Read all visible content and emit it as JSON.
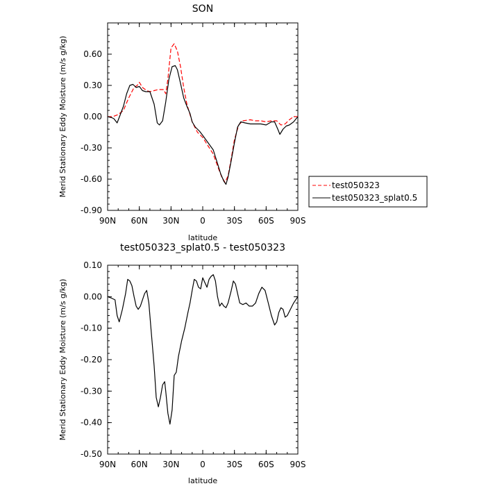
{
  "chart_data": [
    {
      "type": "line",
      "title": "SON",
      "xlabel": "latitude",
      "ylabel": "Merid Stationary Eddy Moisture (m/s g/kg)",
      "xlim": [
        90,
        -90
      ],
      "ylim": [
        -0.9,
        0.9
      ],
      "x_ticks": [
        {
          "value": 90,
          "label": "90N"
        },
        {
          "value": 60,
          "label": "60N"
        },
        {
          "value": 30,
          "label": "30N"
        },
        {
          "value": 0,
          "label": "0"
        },
        {
          "value": -30,
          "label": "30S"
        },
        {
          "value": -60,
          "label": "60S"
        },
        {
          "value": -90,
          "label": "90S"
        }
      ],
      "y_ticks": [
        {
          "value": 0.6,
          "label": "0.60"
        },
        {
          "value": 0.3,
          "label": "0.30"
        },
        {
          "value": 0.0,
          "label": "0.00"
        },
        {
          "value": -0.3,
          "label": "-0.30"
        },
        {
          "value": -0.6,
          "label": "-0.60"
        },
        {
          "value": -0.9,
          "label": "-0.90"
        }
      ],
      "legend_position": "right-outside",
      "series": [
        {
          "name": "test050323",
          "color": "#ff0000",
          "dash": "dashed",
          "points": [
            [
              90,
              0.0
            ],
            [
              85,
              0.0
            ],
            [
              80,
              0.02
            ],
            [
              75,
              0.06
            ],
            [
              70,
              0.18
            ],
            [
              65,
              0.28
            ],
            [
              62,
              0.3
            ],
            [
              60,
              0.33
            ],
            [
              57,
              0.28
            ],
            [
              53,
              0.25
            ],
            [
              50,
              0.24
            ],
            [
              46,
              0.25
            ],
            [
              42,
              0.26
            ],
            [
              37,
              0.26
            ],
            [
              35,
              0.22
            ],
            [
              33,
              0.36
            ],
            [
              30,
              0.66
            ],
            [
              27,
              0.7
            ],
            [
              24,
              0.63
            ],
            [
              21,
              0.48
            ],
            [
              18,
              0.28
            ],
            [
              15,
              0.12
            ],
            [
              10,
              -0.05
            ],
            [
              5,
              -0.15
            ],
            [
              0,
              -0.2
            ],
            [
              -5,
              -0.28
            ],
            [
              -10,
              -0.36
            ],
            [
              -15,
              -0.5
            ],
            [
              -18,
              -0.58
            ],
            [
              -21,
              -0.63
            ],
            [
              -24,
              -0.57
            ],
            [
              -27,
              -0.4
            ],
            [
              -30,
              -0.22
            ],
            [
              -34,
              -0.08
            ],
            [
              -38,
              -0.04
            ],
            [
              -45,
              -0.03
            ],
            [
              -50,
              -0.04
            ],
            [
              -55,
              -0.04
            ],
            [
              -60,
              -0.05
            ],
            [
              -65,
              -0.04
            ],
            [
              -70,
              -0.04
            ],
            [
              -74,
              -0.08
            ],
            [
              -78,
              -0.07
            ],
            [
              -82,
              -0.03
            ],
            [
              -86,
              0.0
            ],
            [
              -90,
              0.0
            ]
          ]
        },
        {
          "name": "test050323_splat0.5",
          "color": "#000000",
          "dash": "solid",
          "points": [
            [
              90,
              0.0
            ],
            [
              86,
              -0.01
            ],
            [
              84,
              -0.02
            ],
            [
              81,
              -0.06
            ],
            [
              78,
              0.02
            ],
            [
              75,
              0.1
            ],
            [
              72,
              0.22
            ],
            [
              69,
              0.3
            ],
            [
              66,
              0.31
            ],
            [
              63,
              0.28
            ],
            [
              60,
              0.29
            ],
            [
              57,
              0.25
            ],
            [
              54,
              0.24
            ],
            [
              50,
              0.24
            ],
            [
              46,
              0.12
            ],
            [
              43,
              -0.06
            ],
            [
              41,
              -0.08
            ],
            [
              38,
              -0.04
            ],
            [
              35,
              0.14
            ],
            [
              32,
              0.36
            ],
            [
              29,
              0.48
            ],
            [
              26,
              0.49
            ],
            [
              24,
              0.45
            ],
            [
              21,
              0.32
            ],
            [
              18,
              0.18
            ],
            [
              15,
              0.1
            ],
            [
              12,
              0.03
            ],
            [
              10,
              -0.05
            ],
            [
              7,
              -0.1
            ],
            [
              3,
              -0.14
            ],
            [
              0,
              -0.18
            ],
            [
              -5,
              -0.25
            ],
            [
              -10,
              -0.32
            ],
            [
              -14,
              -0.45
            ],
            [
              -17,
              -0.55
            ],
            [
              -20,
              -0.62
            ],
            [
              -22,
              -0.65
            ],
            [
              -24,
              -0.58
            ],
            [
              -27,
              -0.42
            ],
            [
              -30,
              -0.25
            ],
            [
              -33,
              -0.1
            ],
            [
              -36,
              -0.05
            ],
            [
              -40,
              -0.06
            ],
            [
              -45,
              -0.07
            ],
            [
              -50,
              -0.07
            ],
            [
              -55,
              -0.07
            ],
            [
              -60,
              -0.08
            ],
            [
              -65,
              -0.05
            ],
            [
              -68,
              -0.05
            ],
            [
              -71,
              -0.12
            ],
            [
              -73,
              -0.17
            ],
            [
              -76,
              -0.12
            ],
            [
              -79,
              -0.09
            ],
            [
              -82,
              -0.08
            ],
            [
              -86,
              -0.05
            ],
            [
              -90,
              0.0
            ]
          ]
        }
      ]
    },
    {
      "type": "line",
      "title": "test050323_splat0.5 - test050323",
      "xlabel": "latitude",
      "ylabel": "Merid Stationary Eddy Moisture (m/s g/kg)",
      "xlim": [
        90,
        -90
      ],
      "ylim": [
        -0.5,
        0.1
      ],
      "x_ticks": [
        {
          "value": 90,
          "label": "90N"
        },
        {
          "value": 60,
          "label": "60N"
        },
        {
          "value": 30,
          "label": "30N"
        },
        {
          "value": 0,
          "label": "0"
        },
        {
          "value": -30,
          "label": "30S"
        },
        {
          "value": -60,
          "label": "60S"
        },
        {
          "value": -90,
          "label": "90S"
        }
      ],
      "y_ticks": [
        {
          "value": 0.1,
          "label": "0.10"
        },
        {
          "value": 0.0,
          "label": "0.00"
        },
        {
          "value": -0.1,
          "label": "-0.10"
        },
        {
          "value": -0.2,
          "label": "-0.20"
        },
        {
          "value": -0.3,
          "label": "-0.30"
        },
        {
          "value": -0.4,
          "label": "-0.40"
        },
        {
          "value": -0.5,
          "label": "-0.50"
        }
      ],
      "series": [
        {
          "color": "#000000",
          "dash": "solid",
          "points": [
            [
              90,
              0.0
            ],
            [
              86,
              -0.005
            ],
            [
              83,
              -0.01
            ],
            [
              81,
              -0.06
            ],
            [
              79,
              -0.08
            ],
            [
              76,
              -0.04
            ],
            [
              73,
              0.01
            ],
            [
              71,
              0.055
            ],
            [
              69,
              0.05
            ],
            [
              67,
              0.035
            ],
            [
              65,
              0.0
            ],
            [
              63,
              -0.03
            ],
            [
              61,
              -0.04
            ],
            [
              59,
              -0.03
            ],
            [
              57,
              -0.01
            ],
            [
              55,
              0.01
            ],
            [
              53,
              0.02
            ],
            [
              51,
              -0.02
            ],
            [
              49,
              -0.1
            ],
            [
              46,
              -0.22
            ],
            [
              44,
              -0.32
            ],
            [
              42,
              -0.35
            ],
            [
              40,
              -0.32
            ],
            [
              38,
              -0.28
            ],
            [
              36,
              -0.27
            ],
            [
              35,
              -0.3
            ],
            [
              33,
              -0.37
            ],
            [
              31,
              -0.405
            ],
            [
              29,
              -0.36
            ],
            [
              27,
              -0.25
            ],
            [
              25,
              -0.24
            ],
            [
              23,
              -0.19
            ],
            [
              20,
              -0.14
            ],
            [
              17,
              -0.1
            ],
            [
              14,
              -0.05
            ],
            [
              12,
              -0.02
            ],
            [
              10,
              0.02
            ],
            [
              8,
              0.055
            ],
            [
              6,
              0.05
            ],
            [
              4,
              0.03
            ],
            [
              2,
              0.025
            ],
            [
              0,
              0.06
            ],
            [
              -2,
              0.045
            ],
            [
              -4,
              0.03
            ],
            [
              -6,
              0.055
            ],
            [
              -8,
              0.065
            ],
            [
              -10,
              0.07
            ],
            [
              -12,
              0.05
            ],
            [
              -14,
              0.0
            ],
            [
              -16,
              -0.03
            ],
            [
              -18,
              -0.02
            ],
            [
              -20,
              -0.03
            ],
            [
              -22,
              -0.035
            ],
            [
              -24,
              -0.02
            ],
            [
              -27,
              0.02
            ],
            [
              -29,
              0.05
            ],
            [
              -31,
              0.04
            ],
            [
              -33,
              0.01
            ],
            [
              -35,
              -0.02
            ],
            [
              -38,
              -0.025
            ],
            [
              -41,
              -0.02
            ],
            [
              -44,
              -0.03
            ],
            [
              -47,
              -0.03
            ],
            [
              -50,
              -0.02
            ],
            [
              -53,
              0.01
            ],
            [
              -56,
              0.03
            ],
            [
              -59,
              0.02
            ],
            [
              -62,
              -0.02
            ],
            [
              -65,
              -0.06
            ],
            [
              -68,
              -0.09
            ],
            [
              -70,
              -0.08
            ],
            [
              -72,
              -0.05
            ],
            [
              -74,
              -0.035
            ],
            [
              -76,
              -0.04
            ],
            [
              -78,
              -0.065
            ],
            [
              -80,
              -0.06
            ],
            [
              -83,
              -0.04
            ],
            [
              -86,
              -0.02
            ],
            [
              -90,
              0.0
            ]
          ]
        }
      ]
    }
  ]
}
